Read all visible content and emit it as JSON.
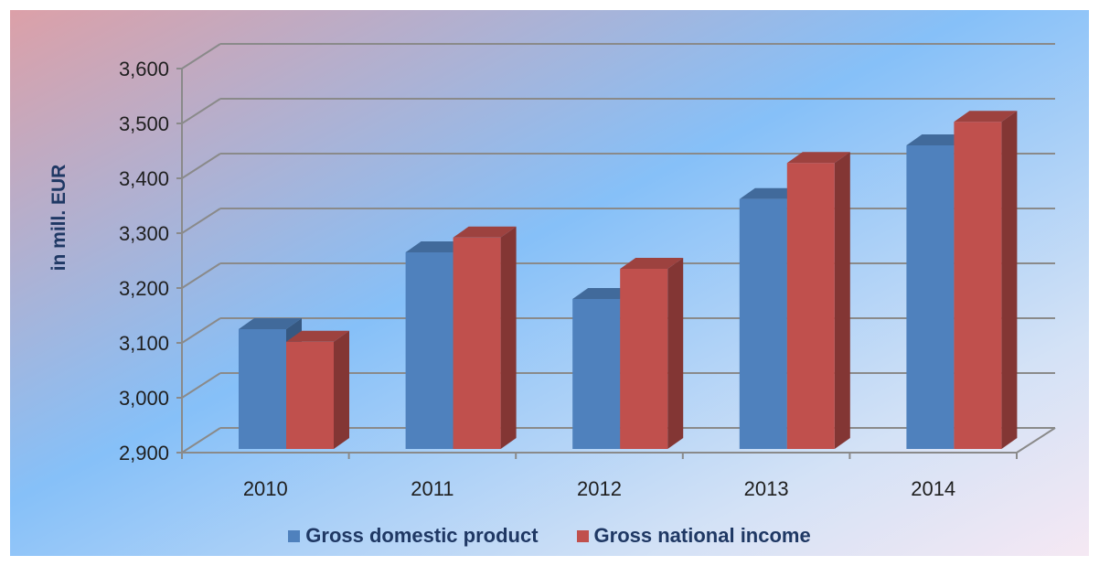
{
  "chart_data": {
    "type": "bar",
    "categories": [
      "2010",
      "2011",
      "2012",
      "2013",
      "2014"
    ],
    "series": [
      {
        "name": "Gross domestic product",
        "values": [
          3125,
          3265,
          3180,
          3362,
          3460
        ],
        "color": "#4f81bd"
      },
      {
        "name": "Gross national income",
        "values": [
          3102,
          3292,
          3235,
          3428,
          3503
        ],
        "color": "#c0504d"
      }
    ],
    "title": "",
    "xlabel": "",
    "ylabel": "in mill. EUR",
    "ylim": [
      2900,
      3600
    ],
    "yticks": [
      "2,900",
      "3,000",
      "3,100",
      "3,200",
      "3,300",
      "3,400",
      "3,500",
      "3,600"
    ],
    "grid": true,
    "legend_position": "bottom",
    "style": "3d-clustered-column"
  }
}
